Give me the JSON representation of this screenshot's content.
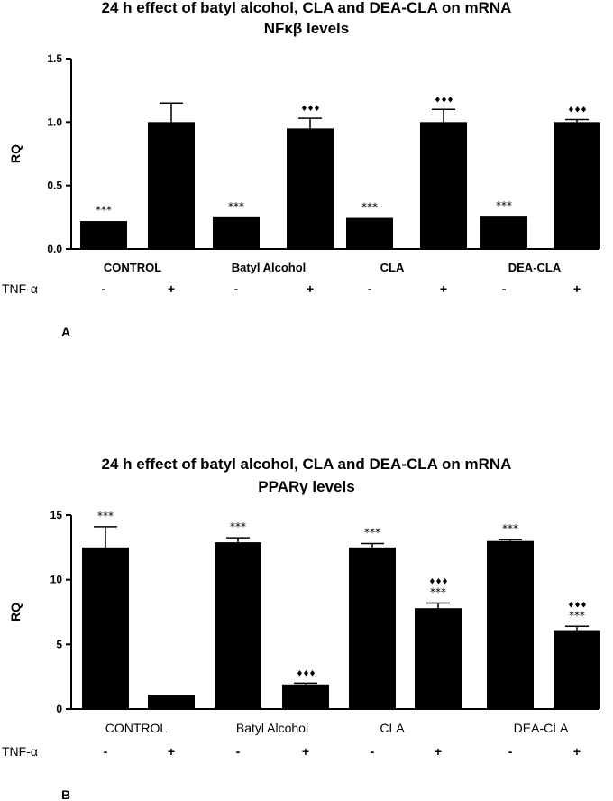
{
  "chart_data": [
    {
      "type": "bar",
      "panel_label": "A",
      "title_line1": "24 h effect of batyl alcohol, CLA and DEA-CLA on mRNA",
      "title_line2": "NFκβ levels",
      "ylabel": "RQ",
      "xlabel": "",
      "ylim": [
        0,
        1.5
      ],
      "yticks": [
        "0.0",
        "0.5",
        "1.0",
        "1.5"
      ],
      "ytick_values": [
        0,
        0.5,
        1.0,
        1.5
      ],
      "groups": [
        "CONTROL",
        "Batyl Alcohol",
        "CLA",
        "DEA-CLA"
      ],
      "row_label": "TNF-α",
      "treatment_signs": [
        "-",
        "+",
        "-",
        "+",
        "-",
        "+",
        "-",
        "+"
      ],
      "values": [
        0.22,
        1.0,
        0.25,
        0.95,
        0.245,
        1.0,
        0.255,
        1.0
      ],
      "errors": [
        0.0,
        0.15,
        0.0,
        0.08,
        0.0,
        0.1,
        0.0,
        0.02
      ],
      "annotations": [
        "***",
        "",
        "***",
        "♦♦♦",
        "***",
        "♦♦♦",
        "***",
        "♦♦♦"
      ]
    },
    {
      "type": "bar",
      "panel_label": "B",
      "title_line1": "24 h effect of batyl alcohol, CLA and DEA-CLA on mRNA",
      "title_line2": "PPARγ levels",
      "ylabel": "RQ",
      "xlabel": "",
      "ylim": [
        0,
        15
      ],
      "yticks": [
        "0",
        "5",
        "10",
        "15"
      ],
      "ytick_values": [
        0,
        5,
        10,
        15
      ],
      "groups": [
        "CONTROL",
        "Batyl Alcohol",
        "CLA",
        "DEA-CLA"
      ],
      "row_label": "TNF-α",
      "treatment_signs": [
        "-",
        "+",
        "-",
        "+",
        "-",
        "+",
        "-",
        "+"
      ],
      "values": [
        12.5,
        1.1,
        12.9,
        1.9,
        12.5,
        7.8,
        13.0,
        6.1
      ],
      "errors": [
        1.6,
        0.0,
        0.35,
        0.1,
        0.3,
        0.4,
        0.1,
        0.3
      ],
      "annotations": [
        "***",
        "",
        "***",
        "♦♦♦",
        "***",
        "♦♦♦|***",
        "***",
        "♦♦♦|***"
      ]
    }
  ]
}
